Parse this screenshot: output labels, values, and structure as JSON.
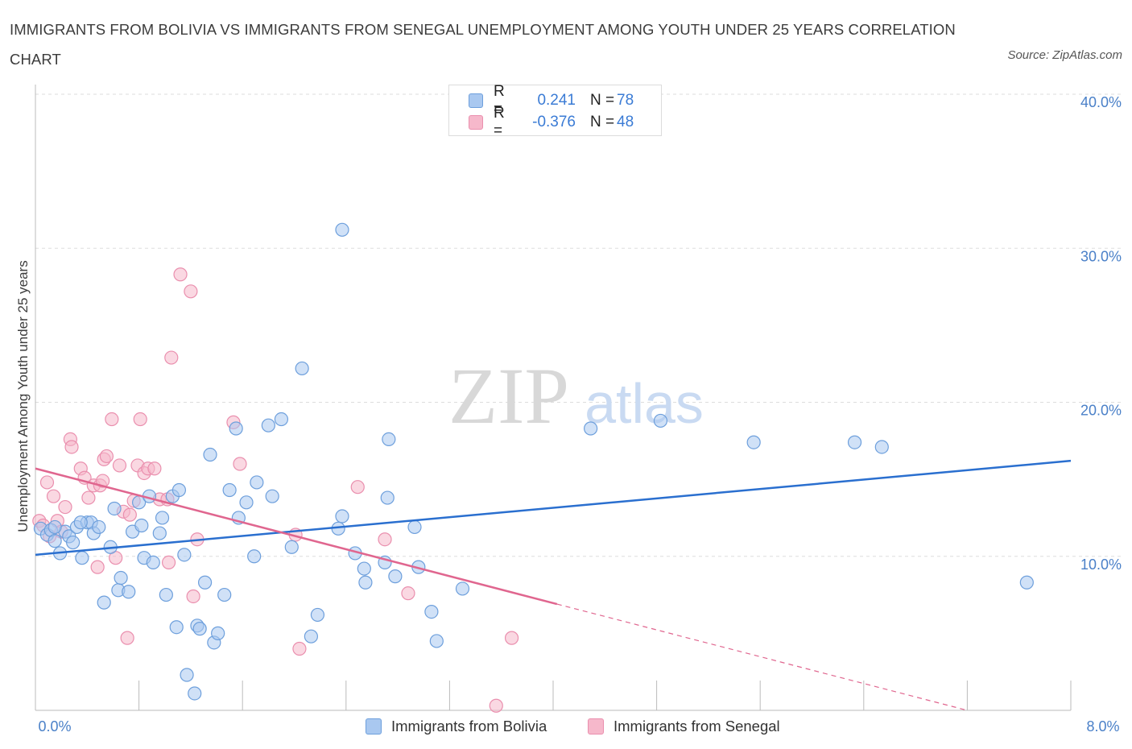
{
  "title": "IMMIGRANTS FROM BOLIVIA VS IMMIGRANTS FROM SENEGAL UNEMPLOYMENT AMONG YOUTH UNDER 25 YEARS CORRELATION CHART",
  "source": "Source: ZipAtlas.com",
  "watermark": {
    "zip": "ZIP",
    "atlas": "atlas"
  },
  "colors": {
    "bolivia_fill": "#a9c8f0",
    "bolivia_stroke": "#6d9fdc",
    "bolivia_line": "#2a6fcf",
    "senegal_fill": "#f6b8cb",
    "senegal_stroke": "#ea8fae",
    "senegal_line": "#e0668f",
    "tick_text": "#4a80c8",
    "grid": "#dddddd"
  },
  "legend_top": {
    "rows": [
      {
        "r_label": "R =",
        "r_value": "0.241",
        "n_label": "N =",
        "n_value": "78"
      },
      {
        "r_label": "R =",
        "r_value": "-0.376",
        "n_label": "N =",
        "n_value": "48"
      }
    ]
  },
  "legend_bottom": [
    "Immigrants from Bolivia",
    "Immigrants from Senegal"
  ],
  "chart_data": {
    "type": "scatter",
    "xlabel": "",
    "ylabel": "Unemployment Among Youth under 25 years",
    "xlim": [
      0,
      8
    ],
    "ylim": [
      0,
      40
    ],
    "x_tick_labels": [
      "0.0%",
      "8.0%"
    ],
    "y_ticks": [
      10,
      20,
      30,
      40
    ],
    "y_tick_labels": [
      "10.0%",
      "20.0%",
      "30.0%",
      "40.0%"
    ],
    "grid": true,
    "legend_position": "top-center",
    "series": [
      {
        "name": "Immigrants from Bolivia",
        "r": 0.241,
        "n": 78,
        "trend": {
          "x0": 0,
          "y0": 10.1,
          "x1": 8,
          "y1": 16.2
        },
        "points": [
          [
            0.04,
            11.8
          ],
          [
            0.09,
            11.4
          ],
          [
            0.12,
            11.7
          ],
          [
            0.15,
            11.0
          ],
          [
            0.19,
            10.2
          ],
          [
            0.23,
            11.6
          ],
          [
            0.26,
            11.3
          ],
          [
            0.29,
            10.9
          ],
          [
            0.32,
            11.9
          ],
          [
            0.36,
            9.9
          ],
          [
            0.4,
            12.2
          ],
          [
            0.43,
            12.2
          ],
          [
            0.45,
            11.5
          ],
          [
            0.49,
            11.9
          ],
          [
            0.53,
            7.0
          ],
          [
            0.58,
            10.6
          ],
          [
            0.61,
            13.1
          ],
          [
            0.64,
            7.8
          ],
          [
            0.66,
            8.6
          ],
          [
            0.72,
            7.7
          ],
          [
            0.75,
            11.6
          ],
          [
            0.8,
            13.5
          ],
          [
            0.82,
            12.0
          ],
          [
            0.84,
            9.9
          ],
          [
            0.88,
            13.9
          ],
          [
            0.91,
            9.6
          ],
          [
            0.96,
            11.5
          ],
          [
            0.98,
            12.5
          ],
          [
            1.01,
            7.5
          ],
          [
            1.06,
            13.9
          ],
          [
            1.09,
            5.4
          ],
          [
            1.11,
            14.3
          ],
          [
            1.15,
            10.1
          ],
          [
            1.17,
            2.3
          ],
          [
            1.23,
            1.1
          ],
          [
            1.25,
            5.5
          ],
          [
            1.27,
            5.3
          ],
          [
            1.31,
            8.3
          ],
          [
            1.35,
            16.6
          ],
          [
            1.38,
            4.4
          ],
          [
            1.41,
            5.0
          ],
          [
            1.46,
            7.5
          ],
          [
            1.5,
            14.3
          ],
          [
            1.55,
            18.3
          ],
          [
            1.57,
            12.5
          ],
          [
            1.63,
            13.5
          ],
          [
            1.69,
            10.0
          ],
          [
            1.71,
            14.8
          ],
          [
            1.8,
            18.5
          ],
          [
            1.83,
            13.9
          ],
          [
            1.9,
            18.9
          ],
          [
            1.98,
            10.6
          ],
          [
            2.06,
            22.2
          ],
          [
            2.13,
            4.8
          ],
          [
            2.18,
            6.2
          ],
          [
            2.34,
            11.8
          ],
          [
            2.37,
            12.6
          ],
          [
            2.37,
            31.2
          ],
          [
            2.47,
            10.2
          ],
          [
            2.54,
            9.2
          ],
          [
            2.55,
            8.3
          ],
          [
            2.7,
            9.6
          ],
          [
            2.72,
            13.8
          ],
          [
            2.73,
            17.6
          ],
          [
            2.78,
            8.7
          ],
          [
            2.93,
            11.9
          ],
          [
            2.96,
            9.3
          ],
          [
            3.06,
            6.4
          ],
          [
            3.1,
            4.5
          ],
          [
            3.3,
            7.9
          ],
          [
            4.29,
            18.3
          ],
          [
            4.83,
            18.8
          ],
          [
            5.55,
            17.4
          ],
          [
            6.33,
            17.4
          ],
          [
            6.54,
            17.1
          ],
          [
            7.66,
            8.3
          ],
          [
            0.15,
            11.9
          ],
          [
            0.35,
            12.2
          ]
        ]
      },
      {
        "name": "Immigrants from Senegal",
        "r": -0.376,
        "n": 48,
        "trend": {
          "x0": 0,
          "y0": 15.7,
          "x1": 4.03,
          "y1": 6.9
        },
        "trend_dashed": {
          "x0": 4.03,
          "y0": 6.9,
          "x1": 7.2,
          "y1": 0
        },
        "points": [
          [
            0.03,
            12.3
          ],
          [
            0.06,
            12.0
          ],
          [
            0.09,
            14.8
          ],
          [
            0.11,
            11.3
          ],
          [
            0.14,
            13.9
          ],
          [
            0.17,
            12.3
          ],
          [
            0.2,
            11.6
          ],
          [
            0.23,
            13.2
          ],
          [
            0.27,
            17.6
          ],
          [
            0.28,
            17.1
          ],
          [
            0.35,
            15.7
          ],
          [
            0.38,
            15.1
          ],
          [
            0.41,
            13.8
          ],
          [
            0.45,
            14.6
          ],
          [
            0.48,
            9.3
          ],
          [
            0.5,
            14.6
          ],
          [
            0.53,
            16.3
          ],
          [
            0.55,
            16.5
          ],
          [
            0.59,
            18.9
          ],
          [
            0.62,
            9.9
          ],
          [
            0.65,
            15.9
          ],
          [
            0.68,
            12.9
          ],
          [
            0.71,
            4.7
          ],
          [
            0.73,
            12.7
          ],
          [
            0.76,
            13.6
          ],
          [
            0.79,
            15.9
          ],
          [
            0.81,
            18.9
          ],
          [
            0.84,
            15.4
          ],
          [
            0.87,
            15.7
          ],
          [
            0.92,
            15.7
          ],
          [
            0.96,
            13.7
          ],
          [
            1.02,
            13.7
          ],
          [
            1.03,
            9.6
          ],
          [
            1.05,
            22.9
          ],
          [
            1.12,
            28.3
          ],
          [
            1.2,
            27.2
          ],
          [
            1.22,
            7.4
          ],
          [
            1.25,
            11.1
          ],
          [
            1.53,
            18.7
          ],
          [
            1.58,
            16.0
          ],
          [
            2.01,
            11.4
          ],
          [
            2.04,
            4.0
          ],
          [
            2.49,
            14.5
          ],
          [
            2.7,
            11.1
          ],
          [
            2.88,
            7.6
          ],
          [
            3.56,
            0.3
          ],
          [
            3.68,
            4.7
          ],
          [
            0.52,
            14.9
          ]
        ]
      }
    ]
  }
}
